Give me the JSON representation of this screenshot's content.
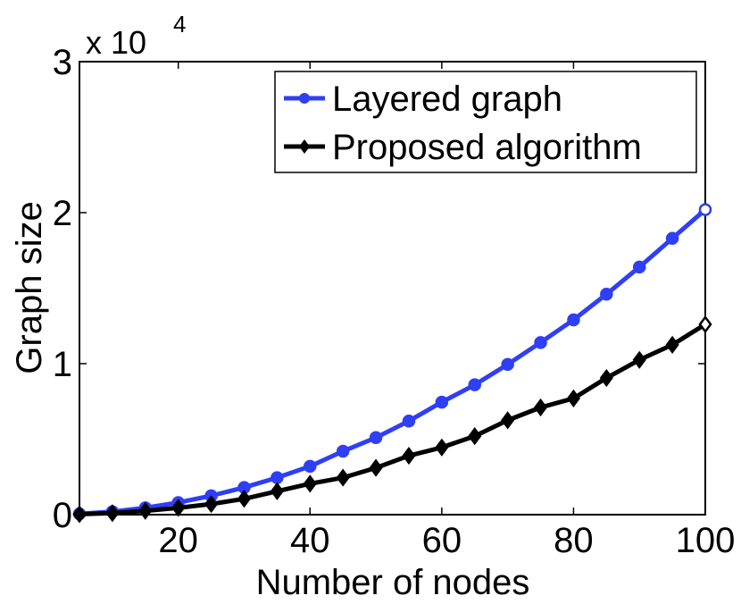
{
  "chart_data": {
    "type": "line",
    "title": "",
    "xlabel": "Number of nodes",
    "ylabel": "Graph size",
    "xlim": [
      5,
      100
    ],
    "ylim": [
      0,
      30000
    ],
    "y_exponent_label": "x 10",
    "y_exponent_power": "4",
    "x_ticks": [
      20,
      40,
      60,
      80,
      100
    ],
    "x_tick_labels": [
      "20",
      "40",
      "60",
      "80",
      "100"
    ],
    "y_ticks": [
      0,
      10000,
      20000,
      30000
    ],
    "y_tick_labels": [
      "0",
      "1",
      "2",
      "3"
    ],
    "grid": false,
    "legend_position": "top-right",
    "x": [
      5,
      10,
      15,
      20,
      25,
      30,
      35,
      40,
      45,
      50,
      55,
      60,
      65,
      70,
      75,
      80,
      85,
      90,
      95,
      100
    ],
    "series": [
      {
        "name": "Layered graph",
        "color": "#2e3ff5",
        "marker": "circle",
        "values": [
          50,
          200,
          450,
          800,
          1250,
          1800,
          2450,
          3200,
          4200,
          5100,
          6200,
          7450,
          8600,
          9950,
          11400,
          12900,
          14600,
          16400,
          18300,
          20200
        ]
      },
      {
        "name": "Proposed algorithm",
        "color": "#000000",
        "marker": "diamond",
        "values": [
          30,
          100,
          250,
          450,
          700,
          1050,
          1550,
          2050,
          2450,
          3100,
          3900,
          4450,
          5200,
          6250,
          7100,
          7700,
          9050,
          10250,
          11250,
          12600
        ]
      }
    ]
  }
}
